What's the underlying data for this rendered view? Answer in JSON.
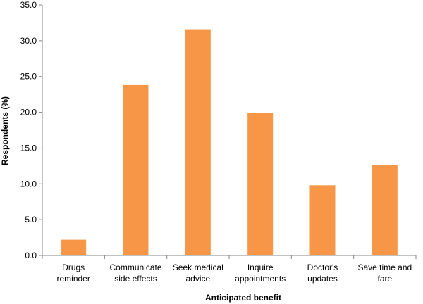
{
  "chart_data": {
    "type": "bar",
    "categories": [
      [
        "Drugs",
        "reminder"
      ],
      [
        "Communicate",
        "side effects"
      ],
      [
        "Seek medical",
        "advice"
      ],
      [
        "Inquire",
        "appointments"
      ],
      [
        "Doctor's",
        "updates"
      ],
      [
        "Save time and",
        "fare"
      ]
    ],
    "values": [
      2.2,
      23.8,
      31.6,
      19.9,
      9.8,
      12.6
    ],
    "xlabel": "Anticipated benefit",
    "ylabel": "Respondents (%)",
    "ylim": [
      0,
      35
    ],
    "yticks": [
      "0.0",
      "5.0",
      "10.0",
      "15.0",
      "20.0",
      "25.0",
      "30.0",
      "35.0"
    ],
    "grid": false,
    "legend": "none",
    "bar_color": "#F79646",
    "axis_color": "#868686"
  }
}
